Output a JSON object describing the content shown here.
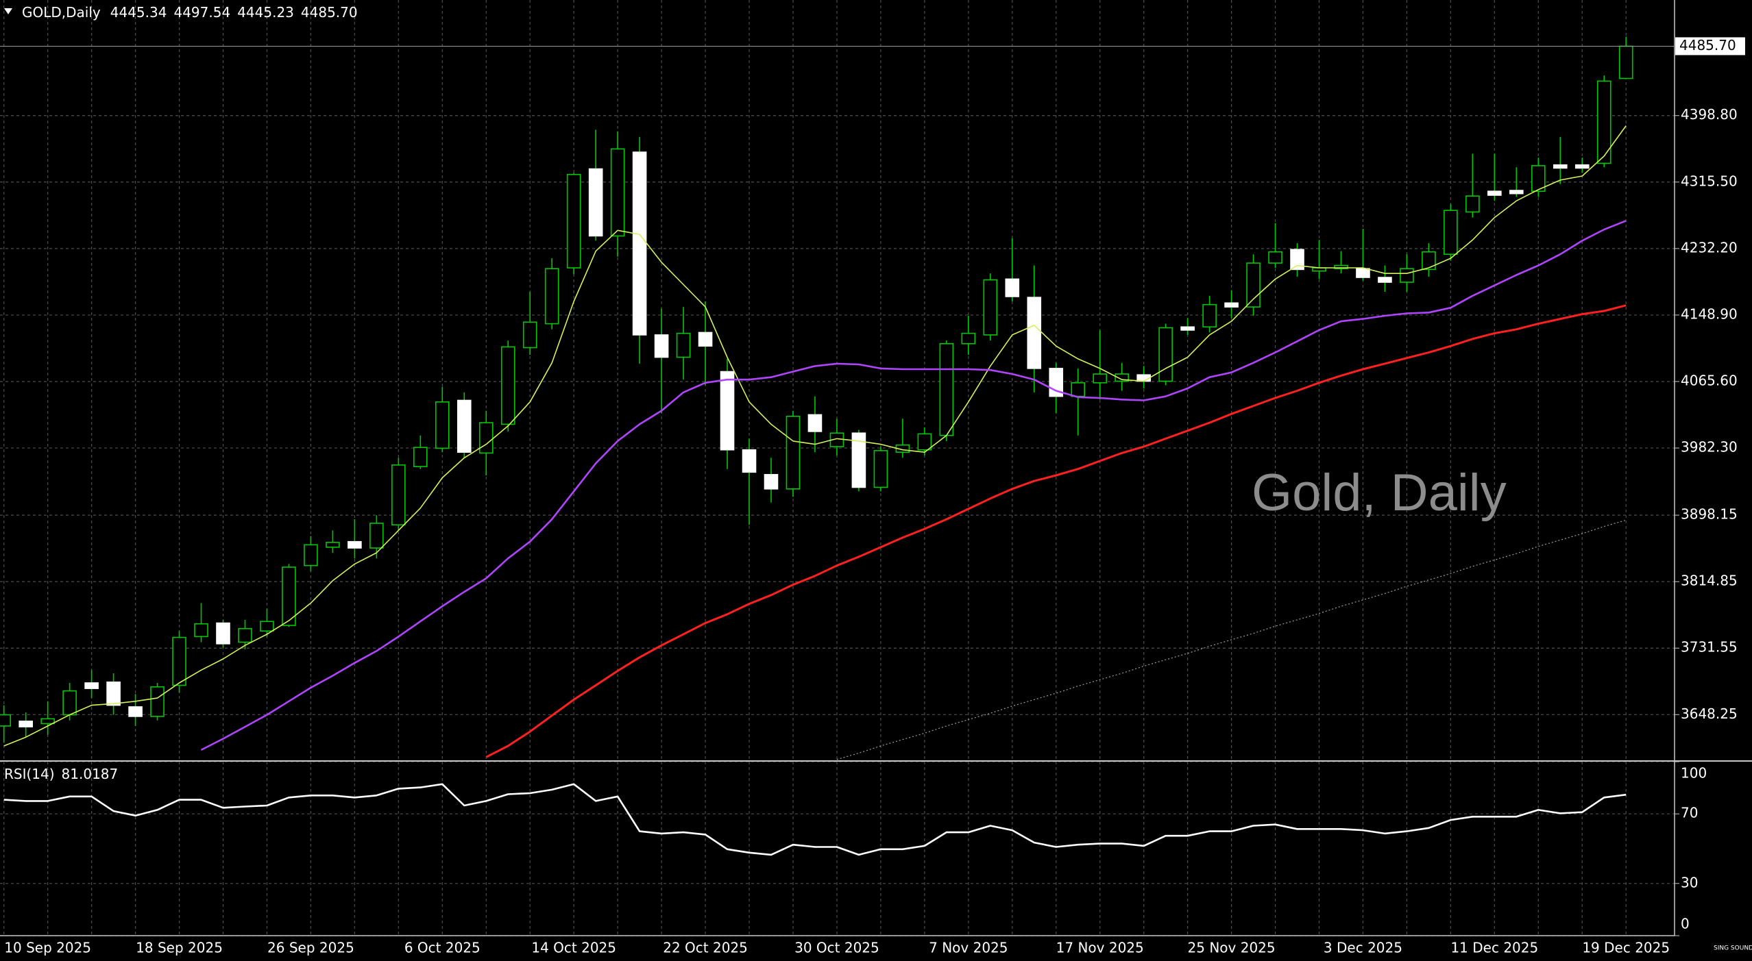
{
  "chart_data": {
    "type": "candlestick",
    "title": "GOLD,Daily",
    "ohlc_labels": [
      "4445.34",
      "4497.54",
      "4445.23",
      "4485.70"
    ],
    "watermark": "Gold, Daily",
    "logo": "SING SOUND",
    "categories": [
      null,
      null,
      "10 Sep 2025",
      null,
      null,
      null,
      null,
      null,
      "18 Sep 2025",
      null,
      null,
      null,
      null,
      null,
      "26 Sep 2025",
      null,
      null,
      null,
      null,
      null,
      "6 Oct 2025",
      null,
      null,
      null,
      null,
      null,
      "14 Oct 2025",
      null,
      null,
      null,
      null,
      null,
      "22 Oct 2025",
      null,
      null,
      null,
      null,
      null,
      "30 Oct 2025",
      null,
      null,
      null,
      null,
      null,
      "7 Nov 2025",
      null,
      null,
      null,
      null,
      null,
      "17 Nov 2025",
      null,
      null,
      null,
      null,
      null,
      "25 Nov 2025",
      null,
      null,
      null,
      null,
      null,
      "3 Dec 2025",
      null,
      null,
      null,
      null,
      null,
      "11 Dec 2025",
      null,
      null,
      null,
      null,
      null,
      "19 Dec 2025"
    ],
    "candles": [
      [
        3634,
        3660,
        3613,
        3648
      ],
      [
        3640,
        3651,
        3620,
        3633
      ],
      [
        3637,
        3665,
        3623,
        3643
      ],
      [
        3648,
        3688,
        3641,
        3678
      ],
      [
        3688,
        3704,
        3669,
        3681
      ],
      [
        3689,
        3700,
        3648,
        3660
      ],
      [
        3658,
        3674,
        3634,
        3646
      ],
      [
        3646,
        3688,
        3641,
        3683
      ],
      [
        3685,
        3753,
        3676,
        3745
      ],
      [
        3746,
        3788,
        3739,
        3762
      ],
      [
        3763,
        3767,
        3732,
        3737
      ],
      [
        3739,
        3767,
        3730,
        3756
      ],
      [
        3753,
        3781,
        3746,
        3765
      ],
      [
        3760,
        3837,
        3758,
        3833
      ],
      [
        3835,
        3872,
        3828,
        3861
      ],
      [
        3858,
        3879,
        3851,
        3864
      ],
      [
        3865,
        3893,
        3844,
        3857
      ],
      [
        3857,
        3898,
        3844,
        3888
      ],
      [
        3886,
        3970,
        3879,
        3961
      ],
      [
        3959,
        3998,
        3956,
        3983
      ],
      [
        3982,
        4059,
        3977,
        4040
      ],
      [
        4042,
        4052,
        3970,
        3977
      ],
      [
        3976,
        4029,
        3948,
        4014
      ],
      [
        4012,
        4117,
        4003,
        4109
      ],
      [
        4108,
        4178,
        4099,
        4140
      ],
      [
        4138,
        4220,
        4131,
        4207
      ],
      [
        4208,
        4327,
        4200,
        4325
      ],
      [
        4332,
        4381,
        4242,
        4248
      ],
      [
        4248,
        4379,
        4222,
        4357
      ],
      [
        4353,
        4372,
        4088,
        4124
      ],
      [
        4124,
        4157,
        4026,
        4096
      ],
      [
        4096,
        4159,
        4068,
        4126
      ],
      [
        4127,
        4166,
        4061,
        4110
      ],
      [
        4078,
        4094,
        3956,
        3980
      ],
      [
        3980,
        3994,
        3886,
        3952
      ],
      [
        3949,
        3970,
        3914,
        3931
      ],
      [
        3931,
        4029,
        3921,
        4022
      ],
      [
        4024,
        4047,
        3977,
        4003
      ],
      [
        3984,
        4019,
        3973,
        4001
      ],
      [
        4001,
        4005,
        3928,
        3933
      ],
      [
        3933,
        3984,
        3928,
        3979
      ],
      [
        3977,
        4019,
        3970,
        3986
      ],
      [
        3980,
        4008,
        3973,
        4000
      ],
      [
        3998,
        4117,
        3991,
        4113
      ],
      [
        4113,
        4148,
        4099,
        4126
      ],
      [
        4124,
        4201,
        4117,
        4193
      ],
      [
        4194,
        4245,
        4166,
        4172
      ],
      [
        4171,
        4211,
        4052,
        4082
      ],
      [
        4082,
        4089,
        4026,
        4047
      ],
      [
        4047,
        4082,
        3998,
        4064
      ],
      [
        4064,
        4130,
        4043,
        4075
      ],
      [
        4066,
        4089,
        4054,
        4075
      ],
      [
        4074,
        4085,
        4057,
        4066
      ],
      [
        4066,
        4138,
        4061,
        4133
      ],
      [
        4134,
        4145,
        4124,
        4130
      ],
      [
        4134,
        4173,
        4127,
        4162
      ],
      [
        4164,
        4180,
        4145,
        4159
      ],
      [
        4159,
        4225,
        4148,
        4214
      ],
      [
        4214,
        4264,
        4208,
        4228
      ],
      [
        4231,
        4239,
        4197,
        4206
      ],
      [
        4204,
        4243,
        4194,
        4208
      ],
      [
        4207,
        4229,
        4201,
        4211
      ],
      [
        4207,
        4257,
        4192,
        4196
      ],
      [
        4196,
        4211,
        4178,
        4190
      ],
      [
        4190,
        4225,
        4178,
        4207
      ],
      [
        4206,
        4239,
        4197,
        4228
      ],
      [
        4225,
        4288,
        4217,
        4280
      ],
      [
        4278,
        4351,
        4271,
        4298
      ],
      [
        4304,
        4351,
        4292,
        4299
      ],
      [
        4305,
        4334,
        4297,
        4301
      ],
      [
        4304,
        4346,
        4297,
        4336
      ],
      [
        4337,
        4372,
        4313,
        4333
      ],
      [
        4337,
        4346,
        4327,
        4333
      ],
      [
        4339,
        4449,
        4334,
        4442
      ],
      [
        4445.34,
        4497.54,
        4445.23,
        4485.7
      ]
    ],
    "colors": {
      "up_body": "#000000",
      "up_line": "#00c800",
      "down_body": "#ffffff",
      "down_line": "#ffffff",
      "wick": "#00c800",
      "price_line": "#9a9a9a"
    },
    "series": [
      {
        "color": "#d2f25c",
        "values": [
          3609,
          3620,
          3634,
          3648,
          3660,
          3662,
          3665,
          3669,
          3688,
          3704,
          3718,
          3735,
          3749,
          3766,
          3788,
          3816,
          3837,
          3851,
          3879,
          3907,
          3945,
          3970,
          3987,
          4010,
          4040,
          4089,
          4166,
          4229,
          4255,
          4250,
          4215,
          4187,
          4159,
          4096,
          4040,
          4012,
          3991,
          3987,
          3994,
          3991,
          3987,
          3980,
          3977,
          3998,
          4040,
          4085,
          4124,
          4136,
          4110,
          4094,
          4082,
          4068,
          4066,
          4082,
          4096,
          4124,
          4141,
          4169,
          4194,
          4211,
          4208,
          4208,
          4208,
          4201,
          4201,
          4208,
          4220,
          4243,
          4271,
          4292,
          4306,
          4318,
          4323,
          4348,
          4386
        ]
      },
      {
        "color": "#b044ff",
        "values": [
          null,
          null,
          null,
          null,
          null,
          null,
          null,
          null,
          null,
          3604,
          3618,
          3633,
          3648,
          3665,
          3682,
          3697,
          3713,
          3728,
          3746,
          3765,
          3784,
          3802,
          3819,
          3844,
          3865,
          3893,
          3928,
          3963,
          3991,
          4012,
          4029,
          4052,
          4064,
          4068,
          4068,
          4071,
          4078,
          4085,
          4088,
          4087,
          4082,
          4081,
          4081,
          4081,
          4081,
          4080,
          4075,
          4068,
          4054,
          4046,
          4045,
          4043,
          4042,
          4047,
          4057,
          4071,
          4077,
          4089,
          4102,
          4116,
          4130,
          4141,
          4144,
          4148,
          4151,
          4152,
          4158,
          4173,
          4186,
          4199,
          4211,
          4225,
          4242,
          4256,
          4267
        ]
      },
      {
        "color": "#ff2020",
        "values": [
          null,
          null,
          null,
          null,
          null,
          null,
          null,
          null,
          null,
          null,
          null,
          null,
          null,
          null,
          null,
          null,
          null,
          null,
          null,
          null,
          null,
          null,
          3595,
          3609,
          3627,
          3647,
          3667,
          3685,
          3703,
          3720,
          3735,
          3749,
          3763,
          3774,
          3787,
          3798,
          3811,
          3822,
          3835,
          3846,
          3858,
          3870,
          3881,
          3893,
          3906,
          3919,
          3931,
          3941,
          3948,
          3956,
          3966,
          3976,
          3984,
          3994,
          4004,
          4014,
          4025,
          4035,
          4045,
          4054,
          4064,
          4073,
          4081,
          4088,
          4095,
          4102,
          4110,
          4119,
          4126,
          4131,
          4138,
          4144,
          4150,
          4154,
          4161
        ]
      },
      {
        "color": "#a0a0a0",
        "style": "dotted",
        "values": [
          null,
          null,
          null,
          null,
          null,
          null,
          null,
          null,
          null,
          null,
          null,
          null,
          null,
          null,
          null,
          null,
          null,
          null,
          null,
          null,
          null,
          null,
          null,
          null,
          null,
          null,
          null,
          null,
          null,
          null,
          null,
          null,
          null,
          null,
          null,
          null,
          null,
          null,
          3592,
          3600,
          3609,
          3617,
          3625,
          3634,
          3642,
          3650,
          3659,
          3667,
          3675,
          3684,
          3692,
          3700,
          3709,
          3717,
          3725,
          3734,
          3742,
          3750,
          3759,
          3767,
          3775,
          3784,
          3792,
          3800,
          3809,
          3817,
          3825,
          3834,
          3842,
          3850,
          3859,
          3867,
          3875,
          3884,
          3892
        ]
      }
    ],
    "ylim": [
      3591,
      4523
    ],
    "yticks": [
      3648.25,
      3731.55,
      3814.85,
      3898.15,
      {
        "value": 3982.3,
        "label": "3982.30"
      },
      {
        "value": 4065.6,
        "label": "4065.60"
      },
      {
        "value": 4148.9,
        "label": "4148.90"
      },
      {
        "value": 4232.2,
        "label": "4232.20"
      },
      {
        "value": 4315.5,
        "label": "4315.50"
      },
      {
        "value": 4398.8,
        "label": "4398.80"
      }
    ],
    "grid": true,
    "rsi": {
      "title": "RSI(14)",
      "color": "#ffffff",
      "ylim": [
        0,
        100
      ],
      "yticks": [
        100,
        70,
        30,
        0
      ],
      "values": [
        78.1,
        77.4,
        77.4,
        80.0,
        80.0,
        71.6,
        69.0,
        72.3,
        78.1,
        78.1,
        73.5,
        74.2,
        74.8,
        79.4,
        80.6,
        80.6,
        79.4,
        80.6,
        84.5,
        85.2,
        87.1,
        74.8,
        77.4,
        81.3,
        81.9,
        83.9,
        87.1,
        77.4,
        80.0,
        60.0,
        58.7,
        59.4,
        58.1,
        49.7,
        47.7,
        46.5,
        52.3,
        51.0,
        51.0,
        46.5,
        49.7,
        49.7,
        51.6,
        59.4,
        59.4,
        63.2,
        60.6,
        53.5,
        51.0,
        52.3,
        52.9,
        52.9,
        51.6,
        57.4,
        57.4,
        60.0,
        60.0,
        63.2,
        63.9,
        61.3,
        61.3,
        61.3,
        60.6,
        58.7,
        60.0,
        61.9,
        66.5,
        68.4,
        68.4,
        68.4,
        72.3,
        70.3,
        71.0,
        79.4,
        81.0187
      ]
    }
  }
}
